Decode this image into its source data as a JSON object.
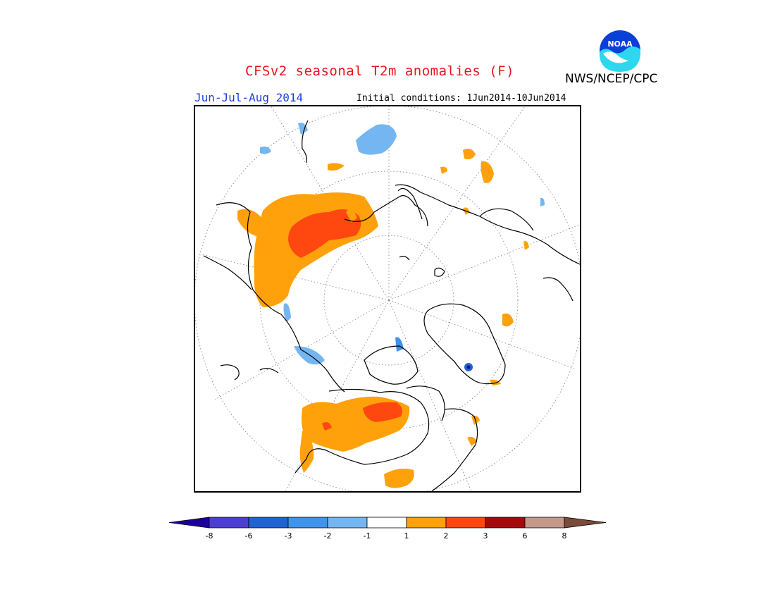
{
  "title": "CFSv2 seasonal T2m anomalies (F)",
  "agency": "NWS/NCEP/CPC",
  "logo_text": "NOAA",
  "period": "Jun-Jul-Aug 2014",
  "initial_conditions": "Initial conditions: 1Jun2014-10Jun2014",
  "colors": {
    "lt_-8": "#1e0099",
    "-8_-6": "#4b3fd1",
    "-6_-3": "#1f63d1",
    "-3_-2": "#3f93eb",
    "-2_-1": "#74b6f2",
    "-1_1": "#ffffff",
    "1_2": "#ffa10a",
    "2_3": "#ff4810",
    "3_6": "#a40a0a",
    "6_8": "#c4998a",
    "gt_8": "#7a4a3a"
  },
  "legend": {
    "bins": [
      {
        "color": "#4b3fd1"
      },
      {
        "color": "#1f63d1"
      },
      {
        "color": "#3f93eb"
      },
      {
        "color": "#74b6f2"
      },
      {
        "color": "#ffffff"
      },
      {
        "color": "#ffa10a"
      },
      {
        "color": "#ff4810"
      },
      {
        "color": "#a40a0a"
      },
      {
        "color": "#c4998a"
      }
    ],
    "low_arrow_color": "#1e0099",
    "high_arrow_color": "#7a4a3a",
    "tick_labels": [
      "-8",
      "-6",
      "-3",
      "-2",
      "-1",
      "1",
      "2",
      "3",
      "6",
      "8"
    ]
  }
}
